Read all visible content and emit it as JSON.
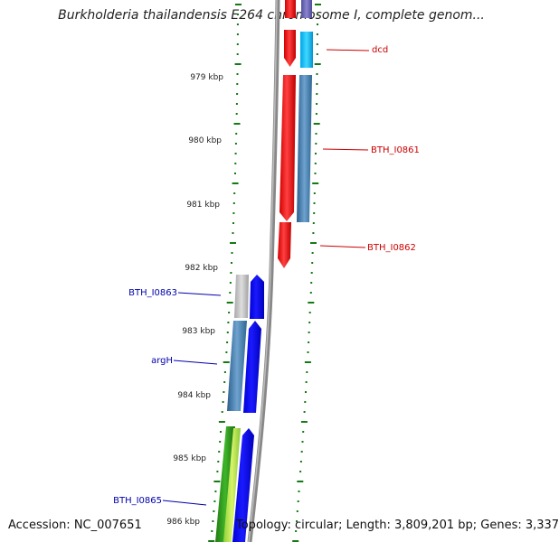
{
  "title": "Burkholderia thailandensis E264 chromosome I, complete genom...",
  "footer": {
    "accession": "Accession: NC_007651",
    "topology": "Topology: circular; Length: 3,809,201 bp; Genes: 3,337"
  },
  "ruler": {
    "labels": [
      "979 kbp",
      "980 kbp",
      "981 kbp",
      "982 kbp",
      "983 kbp",
      "984 kbp",
      "985 kbp",
      "986 kbp"
    ]
  },
  "gene_labels": {
    "right": [
      "dcd",
      "BTH_I0861",
      "BTH_I0862"
    ],
    "left": [
      "BTH_I0863",
      "argH",
      "BTH_I0865"
    ]
  },
  "colors": {
    "right_labels": "#cc0000",
    "left_labels": "#0000aa",
    "tick": "#137a13",
    "backbone": "#888888"
  }
}
